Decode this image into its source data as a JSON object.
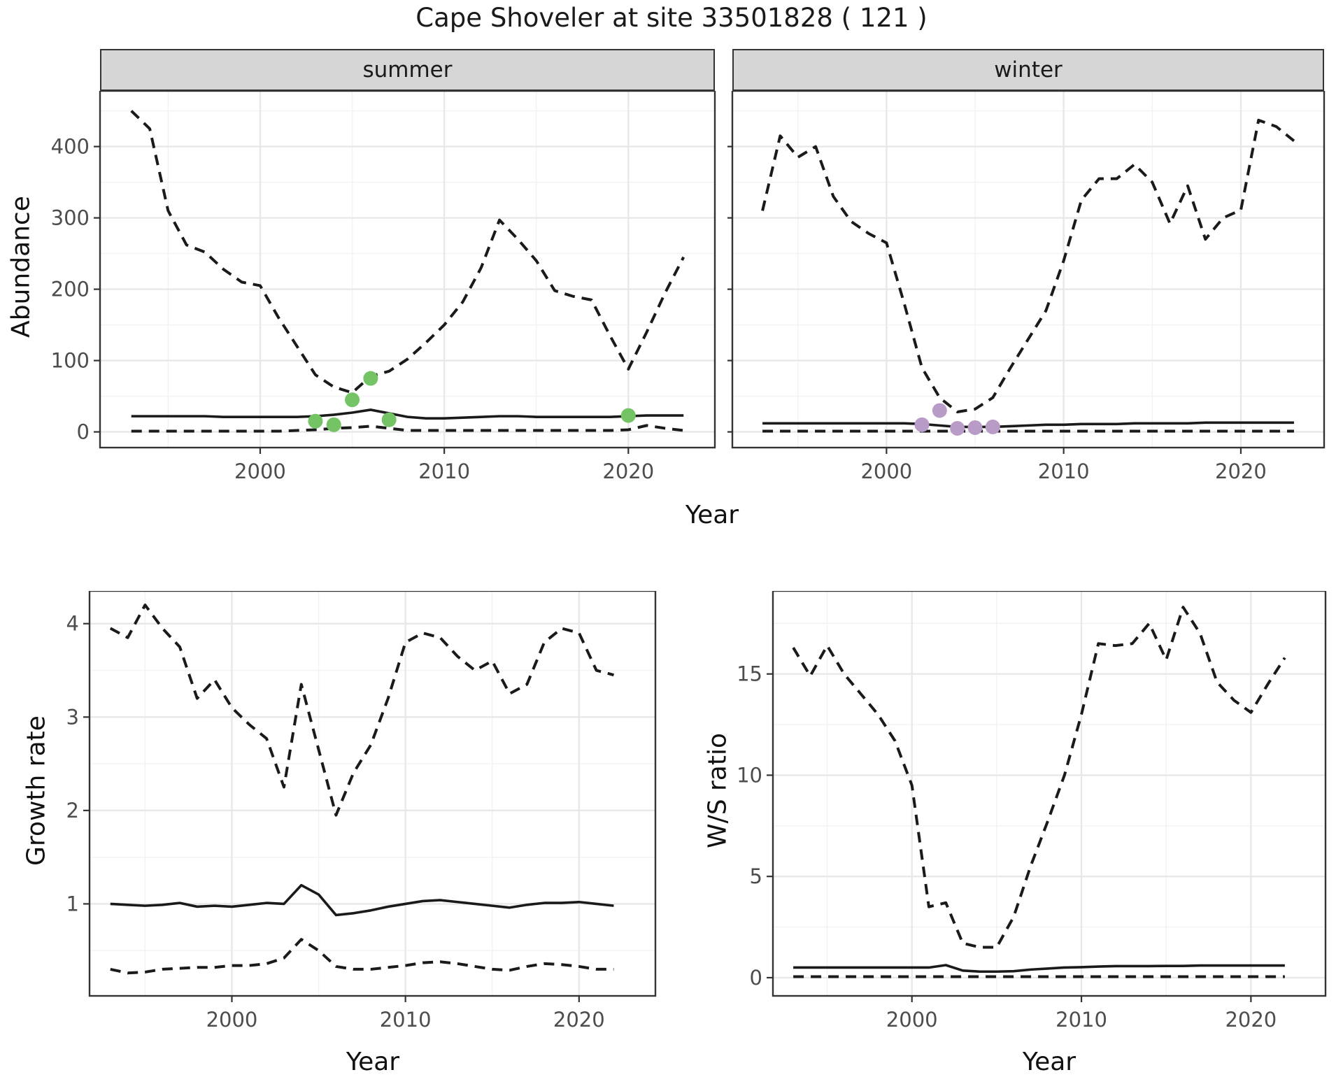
{
  "page": {
    "title": "Cape Shoveler at site 33501828 ( 121 )"
  },
  "axes": {
    "top_ylabel": "Abundance",
    "top_xlabel": "Year",
    "bottom_left_ylabel": "Growth rate",
    "bottom_left_xlabel": "Year",
    "bottom_right_ylabel": "W/S ratio",
    "bottom_right_xlabel": "Year"
  },
  "facets": {
    "summer": "summer",
    "winter": "winter"
  },
  "colors": {
    "line": "#1a1a1a",
    "grid_major": "#e8e8e8",
    "grid_minor": "#f2f2f2",
    "panel_border": "#333333",
    "strip_bg": "#d6d6d6",
    "tick_label": "#4d4d4d",
    "summer_points": "#74c465",
    "winter_points": "#b99bc8"
  },
  "chart_data": [
    {
      "id": "summer",
      "type": "line",
      "facet_label": "summer",
      "x": {
        "label": "Year",
        "domain": [
          1991.3,
          2024.7
        ],
        "ticks": [
          2000,
          2010,
          2020
        ],
        "minor_ticks": [
          1995,
          2005,
          2015
        ],
        "show_tick_labels": true
      },
      "y": {
        "label": "Abundance",
        "domain": [
          -22,
          478
        ],
        "ticks": [
          0,
          100,
          200,
          300,
          400
        ],
        "minor_ticks": [
          50,
          150,
          250,
          350,
          450
        ],
        "show_tick_labels": true
      },
      "years": [
        1993,
        1994,
        1995,
        1996,
        1997,
        1998,
        1999,
        2000,
        2001,
        2002,
        2003,
        2004,
        2005,
        2006,
        2007,
        2008,
        2009,
        2010,
        2011,
        2012,
        2013,
        2014,
        2015,
        2016,
        2017,
        2018,
        2019,
        2020,
        2021,
        2022,
        2023
      ],
      "series": [
        {
          "name": "upper_95_ci",
          "style": "dashed",
          "values": [
            450,
            425,
            310,
            262,
            252,
            228,
            210,
            205,
            160,
            120,
            80,
            63,
            55,
            78,
            85,
            102,
            125,
            150,
            182,
            230,
            297,
            270,
            240,
            198,
            190,
            185,
            135,
            88,
            140,
            195,
            245
          ]
        },
        {
          "name": "median",
          "style": "solid",
          "values": [
            22,
            22,
            22,
            22,
            22,
            21,
            21,
            21,
            21,
            21,
            22,
            24,
            27,
            31,
            26,
            21,
            19,
            19,
            20,
            21,
            22,
            22,
            21,
            21,
            21,
            21,
            21,
            22,
            23,
            23,
            23
          ]
        },
        {
          "name": "lower_95_ci",
          "style": "dashed",
          "values": [
            1,
            1,
            1,
            1,
            1,
            1,
            1,
            1,
            1,
            2,
            3,
            5,
            6,
            8,
            5,
            2,
            2,
            2,
            2,
            2,
            2,
            2,
            2,
            2,
            2,
            2,
            2,
            3,
            9,
            5,
            2
          ]
        }
      ],
      "points": {
        "name": "observed_counts",
        "color": "#74c465",
        "data": [
          [
            2003,
            15
          ],
          [
            2004,
            10
          ],
          [
            2005,
            45
          ],
          [
            2006,
            75
          ],
          [
            2007,
            17
          ],
          [
            2020,
            23
          ]
        ]
      }
    },
    {
      "id": "winter",
      "type": "line",
      "facet_label": "winter",
      "x": {
        "label": "Year",
        "domain": [
          1991.3,
          2024.7
        ],
        "ticks": [
          2000,
          2010,
          2020
        ],
        "minor_ticks": [
          1995,
          2005,
          2015
        ],
        "show_tick_labels": true
      },
      "y": {
        "label": "Abundance",
        "domain": [
          -22,
          478
        ],
        "ticks": [
          0,
          100,
          200,
          300,
          400
        ],
        "minor_ticks": [
          50,
          150,
          250,
          350,
          450
        ],
        "show_tick_labels": false
      },
      "years": [
        1993,
        1994,
        1995,
        1996,
        1997,
        1998,
        1999,
        2000,
        2001,
        2002,
        2003,
        2004,
        2005,
        2006,
        2007,
        2008,
        2009,
        2010,
        2011,
        2012,
        2013,
        2014,
        2015,
        2016,
        2017,
        2018,
        2019,
        2020,
        2021,
        2022,
        2023
      ],
      "series": [
        {
          "name": "upper_95_ci",
          "style": "dashed",
          "values": [
            310,
            415,
            385,
            400,
            330,
            295,
            278,
            265,
            180,
            90,
            48,
            28,
            32,
            48,
            90,
            130,
            170,
            240,
            325,
            355,
            355,
            375,
            350,
            292,
            345,
            270,
            300,
            311,
            437,
            428,
            408
          ]
        },
        {
          "name": "median",
          "style": "solid",
          "values": [
            12,
            12,
            12,
            12,
            12,
            12,
            12,
            12,
            12,
            11,
            9,
            7,
            7,
            7,
            8,
            9,
            10,
            10,
            11,
            11,
            11,
            12,
            12,
            12,
            12,
            13,
            13,
            13,
            13,
            13,
            13
          ]
        },
        {
          "name": "lower_95_ci",
          "style": "dashed",
          "values": [
            1,
            1,
            1,
            1,
            1,
            1,
            1,
            1,
            1,
            1,
            1,
            1,
            1,
            1,
            1,
            1,
            1,
            1,
            1,
            1,
            1,
            1,
            1,
            1,
            1,
            1,
            1,
            1,
            1,
            1,
            1
          ]
        }
      ],
      "points": {
        "name": "observed_counts",
        "color": "#b99bc8",
        "data": [
          [
            2002,
            10
          ],
          [
            2003,
            30
          ],
          [
            2004,
            5
          ],
          [
            2005,
            6
          ],
          [
            2006,
            7
          ]
        ]
      }
    },
    {
      "id": "growth",
      "type": "line",
      "facet_label": null,
      "x": {
        "label": "Year",
        "domain": [
          1991.8,
          2024.4
        ],
        "ticks": [
          2000,
          2010,
          2020
        ],
        "minor_ticks": [
          1995,
          2005,
          2015
        ],
        "show_tick_labels": true
      },
      "y": {
        "label": "Growth rate",
        "domain": [
          0.015,
          4.35
        ],
        "ticks": [
          1,
          2,
          3,
          4
        ],
        "minor_ticks": [
          0.5,
          1.5,
          2.5,
          3.5
        ],
        "show_tick_labels": true
      },
      "years": [
        1993,
        1994,
        1995,
        1996,
        1997,
        1998,
        1999,
        2000,
        2001,
        2002,
        2003,
        2004,
        2005,
        2006,
        2007,
        2008,
        2009,
        2010,
        2011,
        2012,
        2013,
        2014,
        2015,
        2016,
        2017,
        2018,
        2019,
        2020,
        2021,
        2022
      ],
      "series": [
        {
          "name": "upper_95_ci",
          "style": "dashed",
          "values": [
            3.95,
            3.85,
            4.2,
            3.95,
            3.75,
            3.2,
            3.4,
            3.1,
            2.92,
            2.77,
            2.25,
            3.35,
            2.65,
            1.95,
            2.4,
            2.7,
            3.2,
            3.8,
            3.9,
            3.85,
            3.65,
            3.5,
            3.6,
            3.25,
            3.35,
            3.8,
            3.95,
            3.9,
            3.5,
            3.45
          ]
        },
        {
          "name": "median",
          "style": "solid",
          "values": [
            1.0,
            0.99,
            0.98,
            0.99,
            1.01,
            0.97,
            0.98,
            0.97,
            0.99,
            1.01,
            1.0,
            1.2,
            1.1,
            0.88,
            0.9,
            0.93,
            0.97,
            1.0,
            1.03,
            1.04,
            1.02,
            1.0,
            0.98,
            0.96,
            0.99,
            1.01,
            1.01,
            1.02,
            1.0,
            0.98
          ]
        },
        {
          "name": "lower_95_ci",
          "style": "dashed",
          "values": [
            0.3,
            0.26,
            0.27,
            0.3,
            0.31,
            0.32,
            0.32,
            0.34,
            0.34,
            0.36,
            0.42,
            0.62,
            0.5,
            0.33,
            0.3,
            0.3,
            0.32,
            0.34,
            0.37,
            0.38,
            0.36,
            0.33,
            0.3,
            0.29,
            0.33,
            0.36,
            0.35,
            0.33,
            0.3,
            0.3
          ]
        }
      ],
      "points": null
    },
    {
      "id": "ws",
      "type": "line",
      "facet_label": null,
      "x": {
        "label": "Year",
        "domain": [
          1991.8,
          2024.4
        ],
        "ticks": [
          2000,
          2010,
          2020
        ],
        "minor_ticks": [
          1995,
          2005,
          2015
        ],
        "show_tick_labels": true
      },
      "y": {
        "label": "W/S ratio",
        "domain": [
          -0.9,
          19.1
        ],
        "ticks": [
          0,
          5,
          10,
          15
        ],
        "minor_ticks": [
          2.5,
          7.5,
          12.5,
          17.5
        ],
        "show_tick_labels": true
      },
      "years": [
        1993,
        1994,
        1995,
        1996,
        1997,
        1998,
        1999,
        2000,
        2001,
        2002,
        2003,
        2004,
        2005,
        2006,
        2007,
        2008,
        2009,
        2010,
        2011,
        2012,
        2013,
        2014,
        2015,
        2016,
        2017,
        2018,
        2019,
        2020,
        2021,
        2022
      ],
      "series": [
        {
          "name": "upper_95_ci",
          "style": "dashed",
          "values": [
            16.3,
            14.9,
            16.4,
            15.0,
            14.0,
            13.0,
            11.7,
            9.5,
            3.5,
            3.7,
            1.7,
            1.5,
            1.5,
            3.0,
            5.5,
            7.7,
            10.0,
            13.0,
            16.5,
            16.4,
            16.5,
            17.5,
            15.7,
            18.3,
            17.0,
            14.6,
            13.7,
            13.1,
            14.5,
            15.8
          ]
        },
        {
          "name": "median",
          "style": "solid",
          "values": [
            0.5,
            0.5,
            0.5,
            0.5,
            0.5,
            0.5,
            0.5,
            0.5,
            0.5,
            0.62,
            0.35,
            0.3,
            0.3,
            0.32,
            0.4,
            0.45,
            0.5,
            0.52,
            0.55,
            0.57,
            0.57,
            0.57,
            0.58,
            0.58,
            0.6,
            0.6,
            0.6,
            0.6,
            0.6,
            0.6
          ]
        },
        {
          "name": "lower_95_ci",
          "style": "dashed",
          "values": [
            0.05,
            0.05,
            0.05,
            0.05,
            0.05,
            0.05,
            0.05,
            0.05,
            0.05,
            0.05,
            0.05,
            0.05,
            0.05,
            0.05,
            0.05,
            0.05,
            0.05,
            0.05,
            0.05,
            0.05,
            0.05,
            0.05,
            0.05,
            0.05,
            0.05,
            0.05,
            0.05,
            0.05,
            0.05,
            0.05
          ]
        }
      ],
      "points": null
    }
  ]
}
